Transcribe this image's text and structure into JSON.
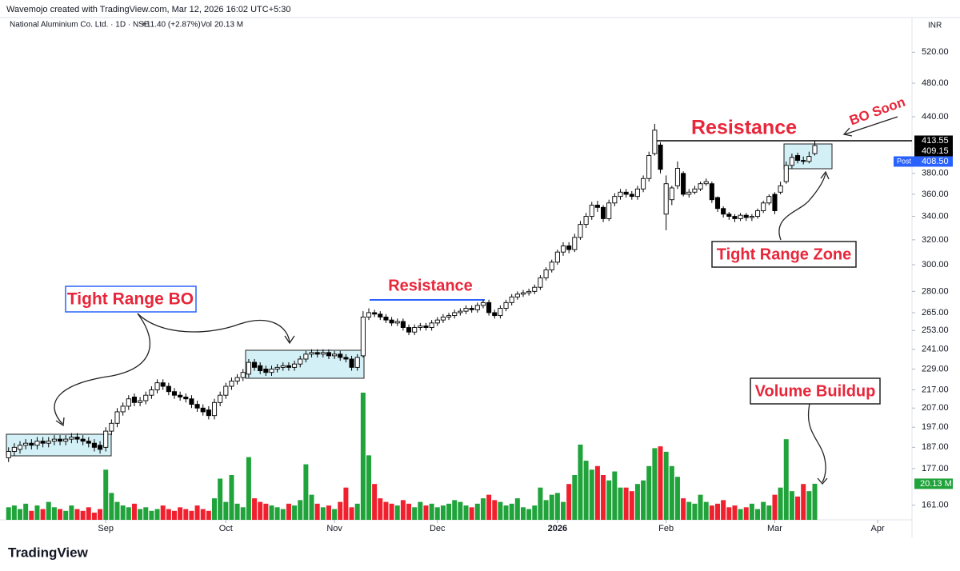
{
  "header": "Wavemojo created with TradingView.com, Mar 12, 2026 16:02 UTC+5:30",
  "footer": "TradingView",
  "chart_data": {
    "type": "candlestick",
    "symbol": "National Aluminium Co. Ltd. · 1D · NSE",
    "change": "+11.40 (+2.87%)",
    "volume_label": "Vol",
    "volume_value": "20.13 M",
    "currency": "INR",
    "log_scale": true,
    "grid": false,
    "up_color": "#1fa33a",
    "down_color": "#f0202e",
    "open": [
      182,
      185,
      186,
      188,
      189,
      188,
      190,
      189,
      190,
      191,
      190,
      191,
      192,
      191,
      190,
      189,
      188,
      187,
      195,
      199,
      205,
      208,
      213,
      210,
      211,
      214,
      217,
      221,
      219,
      216,
      214,
      213,
      212,
      209,
      207,
      206,
      203,
      210,
      214,
      219,
      222,
      224,
      226,
      233,
      231,
      229,
      227,
      229,
      230,
      231,
      230,
      232,
      235,
      238,
      239,
      238,
      239,
      237,
      238,
      236,
      235,
      230,
      237,
      262,
      265,
      264,
      262,
      260,
      258,
      259,
      255,
      252,
      255,
      256,
      255,
      258,
      260,
      262,
      263,
      265,
      266,
      268,
      267,
      270,
      272,
      265,
      263,
      268,
      272,
      276,
      278,
      279,
      280,
      283,
      290,
      296,
      302,
      310,
      315,
      312,
      322,
      333,
      340,
      350,
      348,
      338,
      352,
      358,
      362,
      360,
      358,
      365,
      375,
      400,
      409,
      342,
      355,
      368,
      380,
      360,
      362,
      365,
      370,
      370,
      357,
      347,
      342,
      340,
      338,
      341,
      339,
      340,
      345,
      352,
      360,
      362,
      372,
      388,
      398,
      393,
      392,
      400
    ],
    "high": [
      187,
      189,
      190,
      191,
      191,
      192,
      192,
      192,
      193,
      193,
      193,
      194,
      194,
      193,
      192,
      191,
      190,
      197,
      201,
      207,
      210,
      214,
      215,
      213,
      216,
      219,
      223,
      223,
      221,
      218,
      216,
      215,
      214,
      211,
      209,
      208,
      212,
      216,
      221,
      224,
      226,
      229,
      235,
      235,
      233,
      231,
      231,
      232,
      233,
      233,
      234,
      237,
      240,
      241,
      241,
      241,
      241,
      240,
      240,
      238,
      237,
      238,
      266,
      268,
      267,
      266,
      264,
      262,
      261,
      261,
      257,
      257,
      258,
      258,
      260,
      262,
      264,
      265,
      267,
      268,
      270,
      270,
      272,
      274,
      274,
      267,
      270,
      274,
      278,
      280,
      281,
      282,
      285,
      292,
      298,
      304,
      312,
      318,
      318,
      325,
      336,
      343,
      353,
      354,
      350,
      355,
      361,
      365,
      365,
      363,
      368,
      378,
      402,
      432,
      412,
      378,
      368,
      392,
      382,
      365,
      368,
      372,
      375,
      372,
      358,
      349,
      344,
      342,
      343,
      343,
      342,
      347,
      354,
      360,
      362,
      372,
      392,
      400,
      401,
      397,
      402,
      413.55
    ],
    "low": [
      180,
      183,
      184,
      186,
      186,
      186,
      187,
      187,
      188,
      188,
      188,
      189,
      189,
      188,
      187,
      185,
      184,
      185,
      193,
      197,
      203,
      206,
      208,
      208,
      209,
      212,
      215,
      217,
      214,
      212,
      211,
      210,
      207,
      205,
      203,
      201,
      201,
      208,
      212,
      217,
      220,
      222,
      224,
      228,
      226,
      225,
      225,
      227,
      228,
      228,
      228,
      230,
      233,
      236,
      236,
      236,
      235,
      235,
      234,
      233,
      228,
      228,
      236,
      260,
      262,
      260,
      258,
      256,
      256,
      253,
      250,
      250,
      253,
      253,
      253,
      256,
      258,
      260,
      261,
      263,
      264,
      265,
      265,
      268,
      263,
      261,
      261,
      266,
      270,
      274,
      276,
      277,
      278,
      281,
      288,
      294,
      300,
      307,
      309,
      310,
      320,
      330,
      337,
      344,
      335,
      336,
      349,
      355,
      357,
      355,
      355,
      362,
      372,
      398,
      380,
      328,
      350,
      365,
      358,
      357,
      360,
      363,
      368,
      352,
      344,
      339,
      337,
      335,
      336,
      336,
      336,
      338,
      343,
      350,
      342,
      360,
      370,
      385,
      390,
      389,
      390,
      398
    ],
    "close": [
      185,
      187,
      188,
      189,
      188,
      190,
      189,
      190,
      191,
      190,
      191,
      192,
      191,
      190,
      189,
      187,
      186,
      195,
      199,
      205,
      208,
      212,
      210,
      211,
      214,
      217,
      221,
      219,
      216,
      214,
      213,
      212,
      209,
      207,
      205,
      203,
      210,
      214,
      219,
      222,
      224,
      227,
      233,
      230,
      228,
      227,
      229,
      230,
      231,
      230,
      232,
      235,
      238,
      239,
      238,
      239,
      237,
      238,
      236,
      235,
      230,
      236,
      262,
      265,
      264,
      262,
      260,
      258,
      259,
      255,
      252,
      255,
      256,
      255,
      258,
      260,
      262,
      263,
      265,
      266,
      268,
      267,
      270,
      272,
      265,
      263,
      268,
      272,
      276,
      278,
      279,
      280,
      283,
      290,
      296,
      302,
      310,
      315,
      312,
      322,
      333,
      340,
      350,
      348,
      338,
      352,
      358,
      362,
      360,
      358,
      365,
      375,
      398,
      425,
      384,
      370,
      366,
      385,
      360,
      362,
      365,
      370,
      372,
      355,
      347,
      342,
      340,
      338,
      341,
      339,
      340,
      345,
      352,
      358,
      345,
      368,
      388,
      396,
      393,
      392,
      397.1,
      408.5
    ],
    "volume": [
      7,
      8,
      6,
      9,
      5,
      8,
      6,
      10,
      7,
      6,
      5,
      8,
      6,
      5,
      7,
      4,
      6,
      28,
      15,
      10,
      8,
      7,
      9,
      6,
      7,
      5,
      6,
      8,
      6,
      5,
      7,
      6,
      5,
      8,
      6,
      5,
      12,
      23,
      10,
      25,
      9,
      7,
      35,
      12,
      10,
      9,
      8,
      7,
      6,
      9,
      8,
      11,
      31,
      14,
      9,
      7,
      8,
      6,
      10,
      18,
      7,
      9,
      71,
      36,
      20,
      12,
      10,
      9,
      8,
      11,
      9,
      7,
      10,
      8,
      9,
      7,
      8,
      9,
      11,
      10,
      8,
      7,
      9,
      12,
      14,
      11,
      10,
      8,
      9,
      12,
      7,
      6,
      8,
      18,
      11,
      14,
      15,
      10,
      20,
      25,
      42,
      33,
      28,
      30,
      25,
      22,
      27,
      18,
      18,
      16,
      20,
      22,
      30,
      40,
      41,
      38,
      30,
      24,
      12,
      10,
      9,
      14,
      10,
      8,
      9,
      11,
      7,
      8,
      6,
      7,
      9,
      6,
      10,
      8,
      14,
      18,
      45,
      16,
      13,
      20,
      16,
      20.13
    ],
    "xlim": [
      -1.5,
      158
    ],
    "xticks": [
      {
        "value": 17,
        "label": "Sep"
      },
      {
        "value": 38,
        "label": "Oct"
      },
      {
        "value": 57,
        "label": "Nov"
      },
      {
        "value": 75,
        "label": "Dec"
      },
      {
        "value": 96,
        "label": "2026"
      },
      {
        "value": 115,
        "label": "Feb"
      },
      {
        "value": 134,
        "label": "Mar"
      },
      {
        "value": 152,
        "label": "Apr"
      }
    ],
    "ylim": [
      155,
      548
    ],
    "yticks": [
      {
        "value": 520,
        "label": "520.00"
      },
      {
        "value": 480,
        "label": "480.00"
      },
      {
        "value": 440,
        "label": "440.00"
      },
      {
        "value": 380,
        "label": "380.00"
      },
      {
        "value": 360,
        "label": "360.00"
      },
      {
        "value": 340,
        "label": "340.00"
      },
      {
        "value": 320,
        "label": "320.00"
      },
      {
        "value": 300,
        "label": "300.00"
      },
      {
        "value": 280,
        "label": "280.00"
      },
      {
        "value": 265,
        "label": "265.00"
      },
      {
        "value": 253,
        "label": "253.00"
      },
      {
        "value": 241,
        "label": "241.00"
      },
      {
        "value": 229,
        "label": "229.00"
      },
      {
        "value": 217,
        "label": "217.00"
      },
      {
        "value": 207,
        "label": "207.00"
      },
      {
        "value": 197,
        "label": "197.00"
      },
      {
        "value": 187,
        "label": "187.00"
      },
      {
        "value": 177,
        "label": "177.00"
      },
      {
        "value": 161,
        "label": "161.00"
      }
    ],
    "price_badges": [
      {
        "value": 413.55,
        "label": "413.55",
        "color": "#000000"
      },
      {
        "value": 409.15,
        "label": "409.15",
        "color": "#000000"
      },
      {
        "value": 408.5,
        "label": "408.50",
        "tag": "Post",
        "color": "#2962ff"
      }
    ],
    "volume_badge": {
      "value": 20.13,
      "label": "20.13 M",
      "color": "#1fa33a"
    },
    "annotations": [
      "Tight Range BO",
      "Resistance",
      "Resistance",
      "BO Soon",
      "Tight Range Zone",
      "Volume Buildup"
    ]
  }
}
